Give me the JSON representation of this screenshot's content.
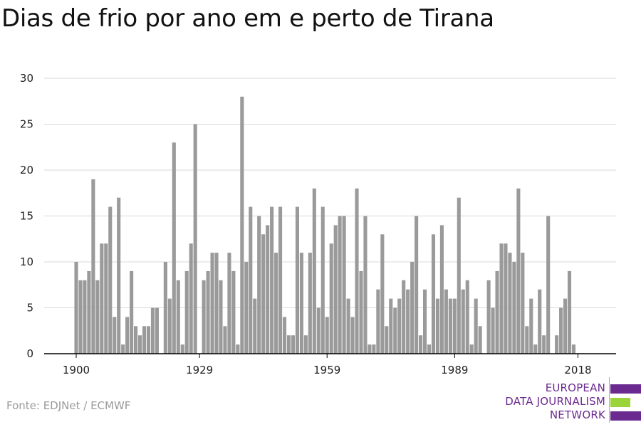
{
  "title": "Dias de frio por ano em e perto de Tirana",
  "source": "Fonte: EDJNet / ECMWF",
  "logo": {
    "lines": [
      "EUROPEAN",
      "DATA JOURNALISM",
      "NETWORK"
    ],
    "colors": [
      "#6b2a8f",
      "#9bd33a",
      "#6b2a8f"
    ]
  },
  "colors": {
    "bar": "#9a9a9a",
    "grid": "#d9d9d9",
    "axis": "#000000",
    "text": "#222222"
  },
  "chart_data": {
    "type": "bar",
    "title": "Dias de frio por ano em e perto de Tirana",
    "xlabel": "",
    "ylabel": "",
    "ylim": [
      0,
      30
    ],
    "yticks": [
      0,
      5,
      10,
      15,
      20,
      25,
      30
    ],
    "xticks": [
      1900,
      1929,
      1959,
      1989,
      2018
    ],
    "grid": true,
    "x": [
      1900,
      1901,
      1902,
      1903,
      1904,
      1905,
      1906,
      1907,
      1908,
      1909,
      1910,
      1911,
      1912,
      1913,
      1914,
      1915,
      1916,
      1917,
      1918,
      1919,
      1920,
      1921,
      1922,
      1923,
      1924,
      1925,
      1926,
      1927,
      1928,
      1929,
      1930,
      1931,
      1932,
      1933,
      1934,
      1935,
      1936,
      1937,
      1938,
      1939,
      1940,
      1941,
      1942,
      1943,
      1944,
      1945,
      1946,
      1947,
      1948,
      1949,
      1950,
      1951,
      1952,
      1953,
      1954,
      1955,
      1956,
      1957,
      1958,
      1959,
      1960,
      1961,
      1962,
      1963,
      1964,
      1965,
      1966,
      1967,
      1968,
      1969,
      1970,
      1971,
      1972,
      1973,
      1974,
      1975,
      1976,
      1977,
      1978,
      1979,
      1980,
      1981,
      1982,
      1983,
      1984,
      1985,
      1986,
      1987,
      1988,
      1989,
      1990,
      1991,
      1992,
      1993,
      1994,
      1995,
      1996,
      1997,
      1998,
      1999,
      2000,
      2001,
      2002,
      2003,
      2004,
      2005,
      2006,
      2007,
      2008,
      2009,
      2010,
      2011,
      2012,
      2013,
      2014,
      2015,
      2016,
      2017,
      2018
    ],
    "values": [
      10,
      8,
      8,
      9,
      19,
      8,
      12,
      12,
      16,
      4,
      17,
      1,
      4,
      9,
      3,
      2,
      3,
      3,
      5,
      5,
      0,
      10,
      6,
      23,
      8,
      1,
      9,
      12,
      25,
      0,
      8,
      9,
      11,
      11,
      8,
      3,
      11,
      9,
      1,
      28,
      10,
      16,
      6,
      15,
      13,
      14,
      16,
      11,
      16,
      4,
      2,
      2,
      16,
      11,
      2,
      11,
      18,
      5,
      16,
      4,
      12,
      14,
      15,
      15,
      6,
      4,
      18,
      9,
      15,
      1,
      1,
      7,
      13,
      3,
      6,
      5,
      6,
      8,
      7,
      10,
      15,
      2,
      7,
      1,
      13,
      6,
      14,
      7,
      6,
      6,
      17,
      7,
      8,
      1,
      6,
      3,
      0,
      8,
      5,
      9,
      12,
      12,
      11,
      10,
      18,
      11,
      3,
      6,
      1,
      7,
      2,
      15,
      0,
      2,
      5,
      6,
      9,
      1,
      0
    ]
  }
}
